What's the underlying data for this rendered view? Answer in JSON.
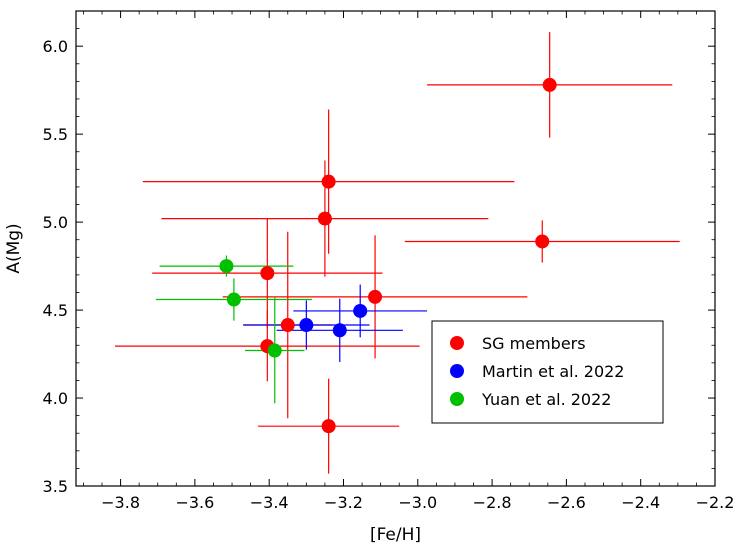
{
  "chart_data": {
    "type": "scatter",
    "xlabel": "[Fe/H]",
    "ylabel": "A(Mg)",
    "xlim": [
      -3.92,
      -2.2
    ],
    "ylim": [
      3.5,
      6.2
    ],
    "x_ticks": [
      -3.8,
      -3.6,
      -3.4,
      -3.2,
      -3.0,
      -2.8,
      -2.6,
      -2.4,
      -2.2
    ],
    "x_tick_labels": [
      "−3.8",
      "−3.6",
      "−3.4",
      "−3.2",
      "−3.0",
      "−2.8",
      "−2.6",
      "−2.4",
      "−2.2"
    ],
    "y_ticks": [
      3.5,
      4.0,
      4.5,
      5.0,
      5.5,
      6.0
    ],
    "y_tick_labels": [
      "3.5",
      "4.0",
      "4.5",
      "5.0",
      "5.5",
      "6.0"
    ],
    "grid": false,
    "legend_position": "lower-right",
    "series": [
      {
        "name": "SG members",
        "color": "#ff0000",
        "points": [
          {
            "x": -2.645,
            "y": 5.78,
            "xerr": 0.33,
            "yerr": 0.3
          },
          {
            "x": -3.24,
            "y": 5.23,
            "xerr": 0.5,
            "yerr": 0.41
          },
          {
            "x": -3.25,
            "y": 5.02,
            "xerr": 0.44,
            "yerr": 0.33
          },
          {
            "x": -2.665,
            "y": 4.89,
            "xerr": 0.37,
            "yerr": 0.12
          },
          {
            "x": -3.405,
            "y": 4.71,
            "xerr": 0.31,
            "yerr": 0.31
          },
          {
            "x": -3.115,
            "y": 4.575,
            "xerr": 0.41,
            "yerr": 0.35
          },
          {
            "x": -3.35,
            "y": 4.415,
            "xerr": 0.12,
            "yerr": 0.53
          },
          {
            "x": -3.405,
            "y": 4.295,
            "xerr": 0.41,
            "yerr": 0.2
          },
          {
            "x": -3.24,
            "y": 3.84,
            "xerr": 0.19,
            "yerr": 0.27
          }
        ]
      },
      {
        "name": "Martin et al. 2022",
        "color": "#0000ff",
        "points": [
          {
            "x": -3.155,
            "y": 4.495,
            "xerr": 0.18,
            "yerr": 0.15
          },
          {
            "x": -3.3,
            "y": 4.415,
            "xerr": 0.17,
            "yerr": 0.14
          },
          {
            "x": -3.21,
            "y": 4.385,
            "xerr": 0.17,
            "yerr": 0.18
          }
        ]
      },
      {
        "name": "Yuan et al. 2022",
        "color": "#00c000",
        "points": [
          {
            "x": -3.515,
            "y": 4.75,
            "xerr": 0.18,
            "yerr": 0.06
          },
          {
            "x": -3.495,
            "y": 4.56,
            "xerr": 0.21,
            "yerr": 0.12
          },
          {
            "x": -3.385,
            "y": 4.27,
            "xerr": 0.08,
            "yerr": 0.3
          }
        ]
      }
    ]
  }
}
